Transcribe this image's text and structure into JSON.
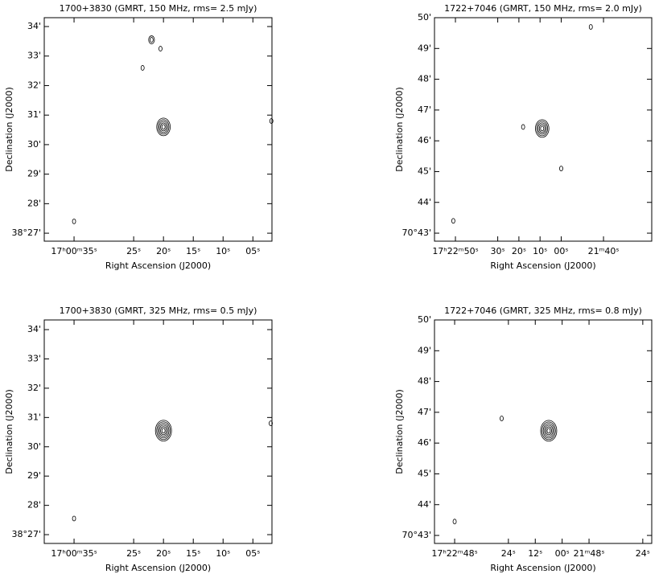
{
  "chart_data": [
    {
      "type": "contour",
      "title": "1700+3830 (GMRT, 150 MHz, rms= 2.5 mJy)",
      "xlabel": "Right Ascension (J2000)",
      "ylabel": "Declination (J2000)",
      "xlim": [
        40,
        1.8
      ],
      "ylim": [
        26.73,
        34.3
      ],
      "xticks": [
        {
          "value": 35,
          "label": "17ʰ00ᵐ35ˢ"
        },
        {
          "value": 25,
          "label": "25ˢ"
        },
        {
          "value": 20,
          "label": "20ˢ"
        },
        {
          "value": 15,
          "label": "15ˢ"
        },
        {
          "value": 10,
          "label": "10ˢ"
        },
        {
          "value": 5,
          "label": "05ˢ"
        }
      ],
      "yticks": [
        {
          "value": 27,
          "label": "38°27'"
        },
        {
          "value": 28,
          "label": "28'"
        },
        {
          "value": 29,
          "label": "29'"
        },
        {
          "value": 30,
          "label": "30'"
        },
        {
          "value": 31,
          "label": "31'"
        },
        {
          "value": 32,
          "label": "32'"
        },
        {
          "value": 33,
          "label": "33'"
        },
        {
          "value": 34,
          "label": "34'"
        }
      ],
      "sources": [
        {
          "x": 20,
          "y": 30.6,
          "levels": 5
        },
        {
          "x": 22,
          "y": 33.55,
          "levels": 2
        },
        {
          "x": 20.5,
          "y": 33.25,
          "levels": 1
        },
        {
          "x": 23.5,
          "y": 32.6,
          "levels": 1
        },
        {
          "x": 1.9,
          "y": 30.8,
          "levels": 1
        },
        {
          "x": 35,
          "y": 27.4,
          "levels": 1
        }
      ]
    },
    {
      "type": "contour",
      "title": "1722+7046 (GMRT, 150 MHz, rms= 2.0 mJy)",
      "xlabel": "Right Ascension (J2000)",
      "ylabel": "Declination (J2000)",
      "xlim": [
        59.9,
        -42.8
      ],
      "ylim": [
        42.74,
        50
      ],
      "xticks": [
        {
          "value": 50,
          "label": "17ʰ22ᵐ50ˢ"
        },
        {
          "value": 30,
          "label": "30ˢ"
        },
        {
          "value": 20,
          "label": "20ˢ"
        },
        {
          "value": 10,
          "label": "10ˢ"
        },
        {
          "value": 0,
          "label": "00ˢ"
        },
        {
          "value": -20,
          "label": "21ᵐ40ˢ"
        }
      ],
      "yticks": [
        {
          "value": 43,
          "label": "70°43'"
        },
        {
          "value": 44,
          "label": "44'"
        },
        {
          "value": 45,
          "label": "45'"
        },
        {
          "value": 46,
          "label": "46'"
        },
        {
          "value": 47,
          "label": "47'"
        },
        {
          "value": 48,
          "label": "48'"
        },
        {
          "value": 49,
          "label": "49'"
        },
        {
          "value": 50,
          "label": "50'"
        }
      ],
      "sources": [
        {
          "x": 9,
          "y": 46.4,
          "levels": 5
        },
        {
          "x": 18,
          "y": 46.45,
          "levels": 1
        },
        {
          "x": 0,
          "y": 45.1,
          "levels": 1
        },
        {
          "x": -14,
          "y": 49.7,
          "levels": 1
        },
        {
          "x": 51,
          "y": 43.4,
          "levels": 1
        }
      ]
    },
    {
      "type": "contour",
      "title": "1700+3830 (GMRT, 325 MHz, rms= 0.5 mJy)",
      "xlabel": "Right Ascension (J2000)",
      "ylabel": "Declination (J2000)",
      "xlim": [
        40,
        1.8
      ],
      "ylim": [
        26.7,
        34.33
      ],
      "xticks": [
        {
          "value": 35,
          "label": "17ʰ00ᵐ35ˢ"
        },
        {
          "value": 25,
          "label": "25ˢ"
        },
        {
          "value": 20,
          "label": "20ˢ"
        },
        {
          "value": 15,
          "label": "15ˢ"
        },
        {
          "value": 10,
          "label": "10ˢ"
        },
        {
          "value": 5,
          "label": "05ˢ"
        }
      ],
      "yticks": [
        {
          "value": 27,
          "label": "38°27'"
        },
        {
          "value": 28,
          "label": "28'"
        },
        {
          "value": 29,
          "label": "29'"
        },
        {
          "value": 30,
          "label": "30'"
        },
        {
          "value": 31,
          "label": "31'"
        },
        {
          "value": 32,
          "label": "32'"
        },
        {
          "value": 33,
          "label": "33'"
        },
        {
          "value": 34,
          "label": "34'"
        }
      ],
      "sources": [
        {
          "x": 20,
          "y": 30.55,
          "levels": 6
        },
        {
          "x": 2,
          "y": 30.8,
          "levels": 1
        },
        {
          "x": 35,
          "y": 27.55,
          "levels": 1
        }
      ]
    },
    {
      "type": "contour",
      "title": "1722+7046 (GMRT, 325 MHz, rms= 0.8 mJy)",
      "xlabel": "Right Ascension (J2000)",
      "ylabel": "Declination (J2000)",
      "xlim": [
        57,
        -40
      ],
      "ylim": [
        42.74,
        50
      ],
      "xticks": [
        {
          "value": 48,
          "label": "17ʰ22ᵐ48ˢ"
        },
        {
          "value": 24,
          "label": "24ˢ"
        },
        {
          "value": 12,
          "label": "12ˢ"
        },
        {
          "value": 0,
          "label": "00ˢ"
        },
        {
          "value": -12,
          "label": "21ᵐ48ˢ"
        },
        {
          "value": -36,
          "label": "24ˢ"
        }
      ],
      "yticks": [
        {
          "value": 43,
          "label": "70°43'"
        },
        {
          "value": 44,
          "label": "44'"
        },
        {
          "value": 45,
          "label": "45'"
        },
        {
          "value": 46,
          "label": "46'"
        },
        {
          "value": 47,
          "label": "47'"
        },
        {
          "value": 48,
          "label": "48'"
        },
        {
          "value": 49,
          "label": "49'"
        },
        {
          "value": 50,
          "label": "50'"
        }
      ],
      "sources": [
        {
          "x": 6,
          "y": 46.4,
          "levels": 6
        },
        {
          "x": 27,
          "y": 46.8,
          "levels": 1
        },
        {
          "x": 48,
          "y": 43.45,
          "levels": 1
        }
      ]
    }
  ]
}
